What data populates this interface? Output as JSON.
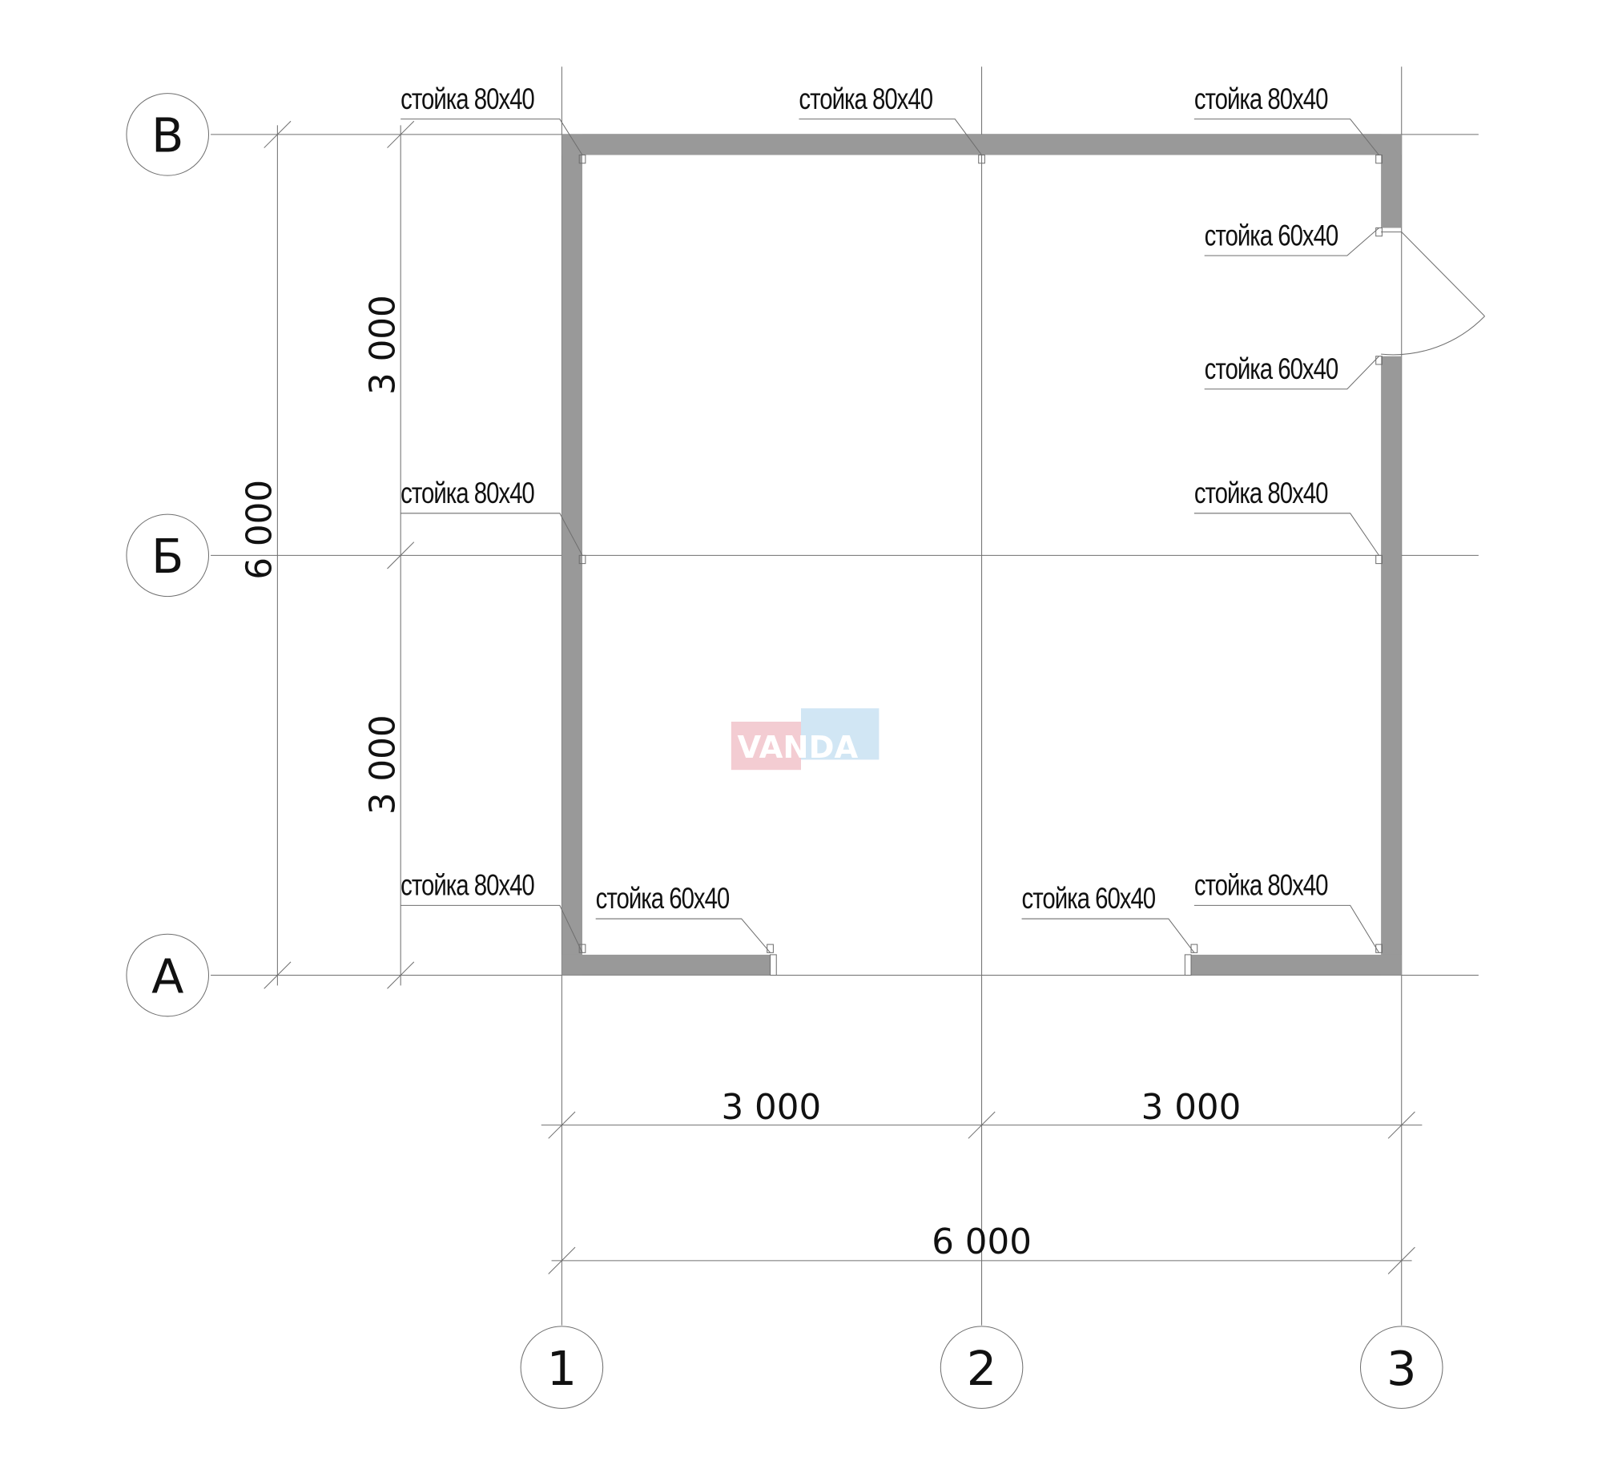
{
  "axes": {
    "rows": [
      "В",
      "Б",
      "А"
    ],
    "columns": [
      "1",
      "2",
      "3"
    ]
  },
  "dimensions": {
    "left_total": "6 000",
    "left_upper": "3 000",
    "left_lower": "3 000",
    "bottom_left": "3 000",
    "bottom_right": "3 000",
    "bottom_total": "6 000"
  },
  "post_labels": [
    "стойка 80x40",
    "стойка 80x40",
    "стойка 80x40",
    "стойка 60x40",
    "стойка 60x40",
    "стойка 80x40",
    "стойка 80x40",
    "стойка 80x40",
    "стойка 60x40",
    "стойка 60x40",
    "стойка 80x40"
  ],
  "watermark": "VANDA",
  "colors": {
    "wall": "#999999",
    "line": "#6f6f6f",
    "watermark_pink": "#f2c4cb",
    "watermark_blue": "#c9e2f3"
  }
}
